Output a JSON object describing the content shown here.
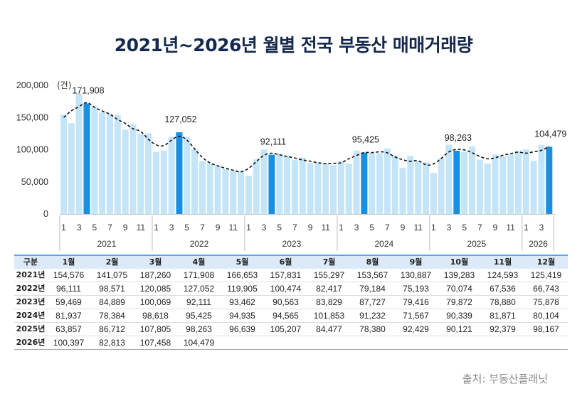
{
  "title": "2021년~2026년 월별 전국 부동산 매매거래량",
  "source": "출처: 부동산플래닛",
  "colors": {
    "title": "#14294d",
    "bar": "#c4e5f8",
    "highlight": "#1b8fdf",
    "trend": "#111111",
    "axis_text": "#333333",
    "grid": "#bbbbbb",
    "table_header": "#dbe9f8",
    "table_border": "#5aa4e6"
  },
  "chart_data": {
    "type": "bar",
    "title": "2021년~2026년 월별 전국 부동산 매매거래량",
    "unit": "(건)",
    "ylim": [
      0,
      200000
    ],
    "yticks": [
      "200,000",
      "150,000",
      "100,000",
      "50,000",
      "0"
    ],
    "x_month_labels": [
      "1",
      "3",
      "5",
      "7",
      "9",
      "11"
    ],
    "years": [
      "2021",
      "2022",
      "2023",
      "2024",
      "2025",
      "2026"
    ],
    "series": [
      {
        "year": "2021",
        "values": [
          154576,
          141075,
          187260,
          171908,
          166653,
          157831,
          155297,
          153567,
          130887,
          139283,
          124593,
          125419
        ]
      },
      {
        "year": "2022",
        "values": [
          96111,
          98571,
          120085,
          127052,
          119905,
          100474,
          82417,
          79184,
          75193,
          70074,
          67536,
          66743
        ]
      },
      {
        "year": "2023",
        "values": [
          59469,
          84889,
          100069,
          92111,
          93462,
          90563,
          83829,
          87727,
          79416,
          79872,
          78880,
          75878
        ]
      },
      {
        "year": "2024",
        "values": [
          81937,
          78384,
          98618,
          95425,
          94935,
          94565,
          101853,
          91232,
          71567,
          90339,
          81871,
          80104
        ]
      },
      {
        "year": "2025",
        "values": [
          63857,
          86712,
          107805,
          98263,
          96639,
          105207,
          84477,
          78380,
          92429,
          90121,
          92379,
          98167
        ]
      },
      {
        "year": "2026",
        "values": [
          100397,
          82813,
          107458,
          104479
        ]
      }
    ],
    "highlight_month": 4,
    "highlight_labels": [
      "171,908",
      "127,052",
      "92,111",
      "95,425",
      "98,263",
      "104,479"
    ],
    "trend_line": "dashed moving average",
    "grid": false
  },
  "table": {
    "header_label": "구분",
    "months": [
      "1월",
      "2월",
      "3월",
      "4월",
      "5월",
      "6월",
      "7월",
      "8월",
      "9월",
      "10월",
      "11월",
      "12월"
    ],
    "rows": [
      {
        "label": "2021년",
        "cells": [
          "154,576",
          "141,075",
          "187,260",
          "171,908",
          "166,653",
          "157,831",
          "155,297",
          "153,567",
          "130,887",
          "139,283",
          "124,593",
          "125,419"
        ]
      },
      {
        "label": "2022년",
        "cells": [
          "96,111",
          "98,571",
          "120,085",
          "127,052",
          "119,905",
          "100,474",
          "82,417",
          "79,184",
          "75,193",
          "70,074",
          "67,536",
          "66,743"
        ]
      },
      {
        "label": "2023년",
        "cells": [
          "59,469",
          "84,889",
          "100,069",
          "92,111",
          "93,462",
          "90,563",
          "83,829",
          "87,727",
          "79,416",
          "79,872",
          "78,880",
          "75,878"
        ]
      },
      {
        "label": "2024년",
        "cells": [
          "81,937",
          "78,384",
          "98,618",
          "95,425",
          "94,935",
          "94,565",
          "101,853",
          "91,232",
          "71,567",
          "90,339",
          "81,871",
          "80,104"
        ]
      },
      {
        "label": "2025년",
        "cells": [
          "63,857",
          "86,712",
          "107,805",
          "98,263",
          "96,639",
          "105,207",
          "84,477",
          "78,380",
          "92,429",
          "90,121",
          "92,379",
          "98,167"
        ]
      },
      {
        "label": "2026년",
        "cells": [
          "100,397",
          "82,813",
          "107,458",
          "104,479",
          "",
          "",
          "",
          "",
          "",
          "",
          "",
          ""
        ]
      }
    ]
  }
}
